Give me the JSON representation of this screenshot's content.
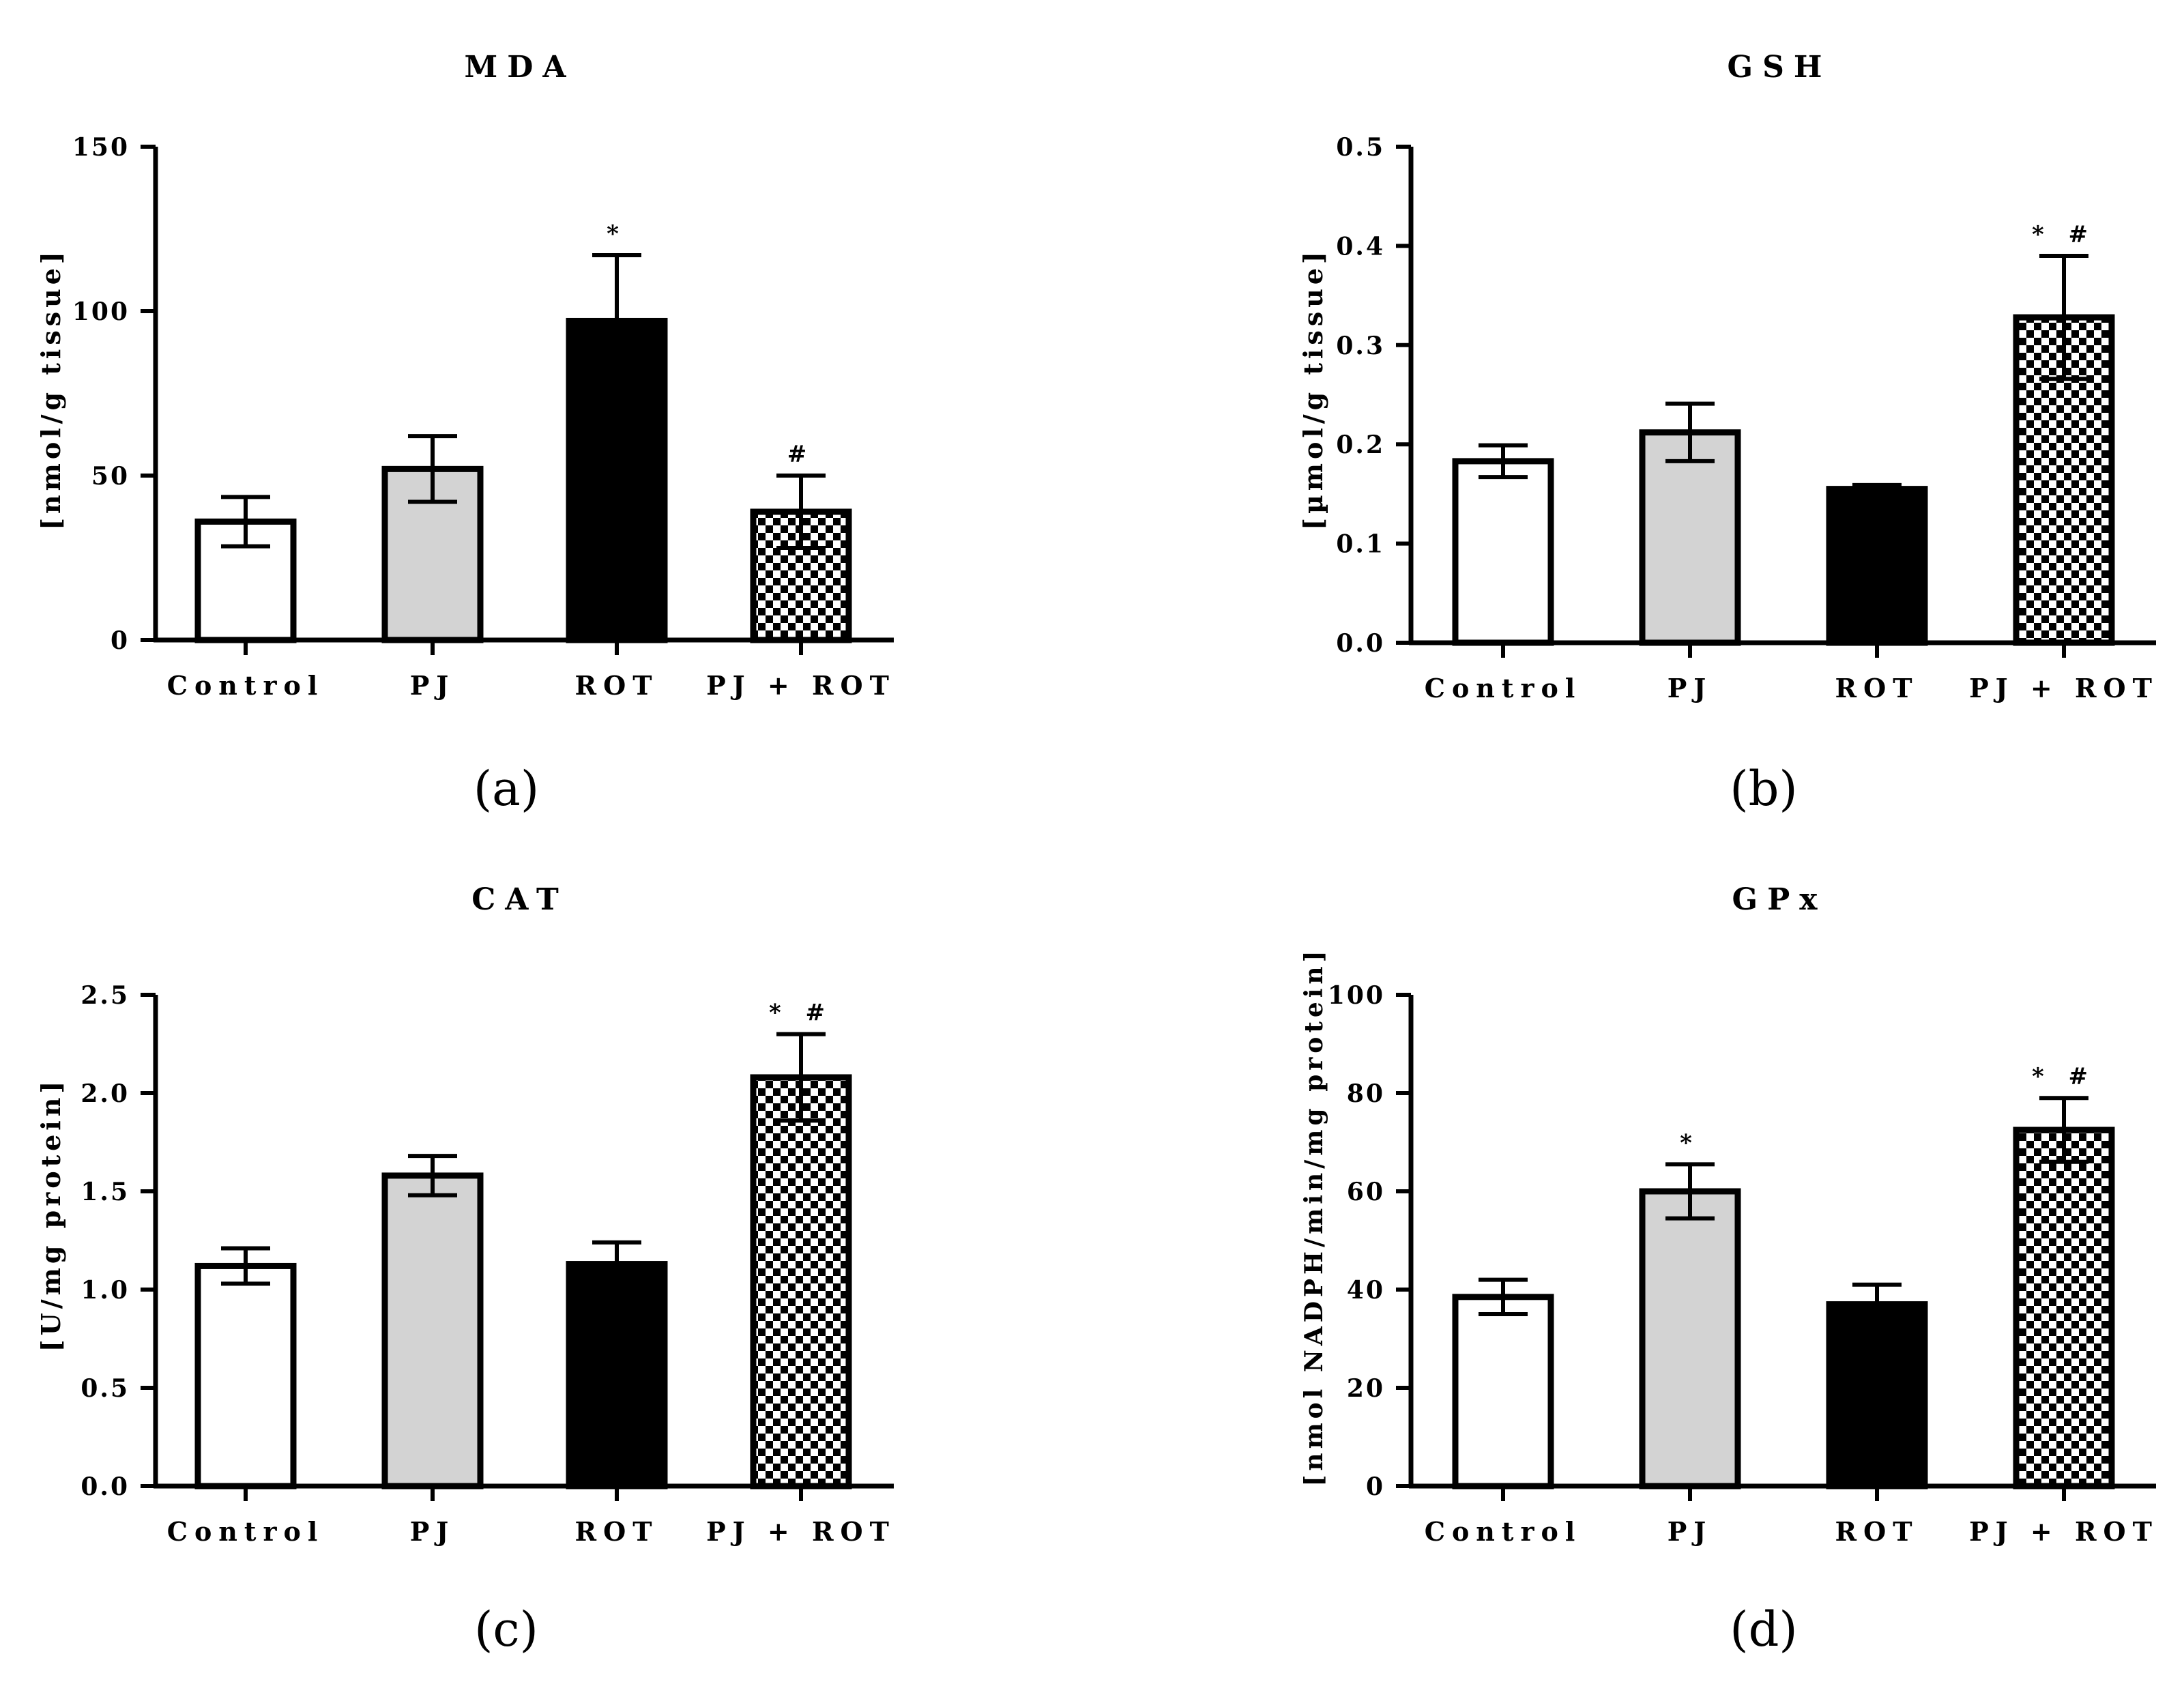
{
  "figure_colors": {
    "Control": "#ffffff",
    "PJ": "#d3d3d3",
    "ROT": "#000000",
    "PJ + ROT": "checker"
  },
  "chart_data": [
    {
      "type": "bar",
      "panel": "(a)",
      "title": "MDA",
      "xlabel": "",
      "ylabel": "[nmol/g tissue]",
      "categories": [
        "Control",
        "PJ",
        "ROT",
        "PJ + ROT"
      ],
      "values": [
        36,
        52,
        97,
        39
      ],
      "errors": [
        7.5,
        10,
        20,
        11
      ],
      "significance": [
        "",
        "",
        "*",
        "#"
      ],
      "ylim": [
        0,
        150
      ],
      "yticks": [
        0,
        50,
        100,
        150
      ],
      "ytick_labels": [
        "0",
        "50",
        "100",
        "150"
      ],
      "grid": false
    },
    {
      "type": "bar",
      "panel": "(b)",
      "title": "GSH",
      "xlabel": "",
      "ylabel": "[µmol/g tissue]",
      "categories": [
        "Control",
        "PJ",
        "ROT",
        "PJ + ROT"
      ],
      "values": [
        0.183,
        0.212,
        0.155,
        0.328
      ],
      "errors": [
        0.016,
        0.029,
        0.004,
        0.062
      ],
      "significance": [
        "",
        "",
        "",
        "* #"
      ],
      "ylim": [
        0,
        0.5
      ],
      "yticks": [
        0,
        0.1,
        0.2,
        0.3,
        0.4,
        0.5
      ],
      "ytick_labels": [
        "0.0",
        "0.1",
        "0.2",
        "0.3",
        "0.4",
        "0.5"
      ],
      "grid": false
    },
    {
      "type": "bar",
      "panel": "(c)",
      "title": "CAT",
      "xlabel": "",
      "ylabel": "[U/mg protein]",
      "categories": [
        "Control",
        "PJ",
        "ROT",
        "PJ + ROT"
      ],
      "values": [
        1.12,
        1.58,
        1.13,
        2.08
      ],
      "errors": [
        0.09,
        0.1,
        0.11,
        0.22
      ],
      "significance": [
        "",
        "",
        "",
        "* #"
      ],
      "ylim": [
        0,
        2.5
      ],
      "yticks": [
        0,
        0.5,
        1.0,
        1.5,
        2.0,
        2.5
      ],
      "ytick_labels": [
        "0.0",
        "0.5",
        "1.0",
        "1.5",
        "2.0",
        "2.5"
      ],
      "grid": false
    },
    {
      "type": "bar",
      "panel": "(d)",
      "title": "GPx",
      "xlabel": "",
      "ylabel": "[nmol NADPH/min/mg protein]",
      "categories": [
        "Control",
        "PJ",
        "ROT",
        "PJ + ROT"
      ],
      "values": [
        38.5,
        60,
        37,
        72.5
      ],
      "errors": [
        3.5,
        5.5,
        4,
        6.5
      ],
      "significance": [
        "",
        "*",
        "",
        "* #"
      ],
      "ylim": [
        0,
        100
      ],
      "yticks": [
        0,
        20,
        40,
        60,
        80,
        100
      ],
      "ytick_labels": [
        "0",
        "20",
        "40",
        "60",
        "80",
        "100"
      ],
      "grid": false
    }
  ]
}
